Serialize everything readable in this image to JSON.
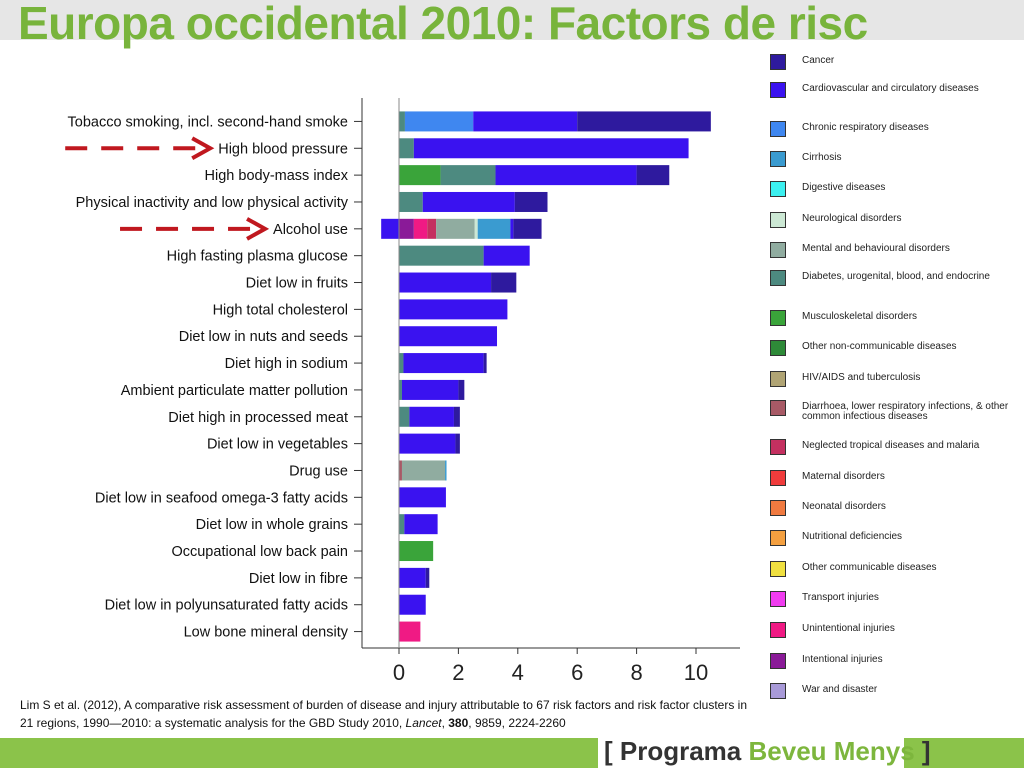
{
  "title": "Europa occidental 2010: Factors de risc",
  "citation": {
    "text_a": "Lim S et al. (2012), A comparative risk assessment of burden of disease and injury attributable to 67 risk factors and risk factor clusters in 21 regions, 1990—2010: a systematic analysis for the GBD Study 2010, ",
    "journal": "Lancet",
    "sep": ", ",
    "volume": "380",
    "text_b": ", 9859, 2224-2260"
  },
  "footer": {
    "open": "[ Programa ",
    "accent": "Beveu Menys",
    "close": " ]"
  },
  "legend": [
    {
      "label": "Cancer",
      "color": "#2e1a9e"
    },
    {
      "label": "Cardiovascular and circulatory diseases",
      "color": "#3a12f0"
    },
    {
      "label": "Chronic respiratory diseases",
      "color": "#3f87f0"
    },
    {
      "label": "Cirrhosis",
      "color": "#3a9bd0"
    },
    {
      "label": "Digestive diseases",
      "color": "#3cf0f0"
    },
    {
      "label": "Neurological disorders",
      "color": "#cce8d4"
    },
    {
      "label": "Mental and behavioural disorders",
      "color": "#90aca0"
    },
    {
      "label": "Diabetes, urogenital, blood, and endocrine",
      "color": "#4d8a80"
    },
    {
      "label": "Musculoskeletal disorders",
      "color": "#3aa43a"
    },
    {
      "label": "Other non-communicable diseases",
      "color": "#2e8a38"
    },
    {
      "label": "HIV/AIDS and tuberculosis",
      "color": "#b0a474"
    },
    {
      "label": "Diarrhoea, lower respiratory infections, & other common infectious diseases",
      "color": "#a85a66"
    },
    {
      "label": "Neglected tropical diseases and malaria",
      "color": "#c43060"
    },
    {
      "label": "Maternal disorders",
      "color": "#f03c3c"
    },
    {
      "label": "Neonatal disorders",
      "color": "#f07a40"
    },
    {
      "label": "Nutritional deficiencies",
      "color": "#f4a040"
    },
    {
      "label": "Other communicable diseases",
      "color": "#f0e040"
    },
    {
      "label": "Transport injuries",
      "color": "#f03cf0"
    },
    {
      "label": "Unintentional injuries",
      "color": "#f01a84"
    },
    {
      "label": "Intentional injuries",
      "color": "#8a1a98"
    },
    {
      "label": "War and disaster",
      "color": "#a89ad8"
    }
  ],
  "chart_data": {
    "type": "bar",
    "orientation": "horizontal",
    "stacked": true,
    "xlim": [
      -0.6,
      11
    ],
    "xticks": [
      0,
      2,
      4,
      6,
      8,
      10
    ],
    "highlighted_categories": [
      "High blood pressure",
      "Alcohol use"
    ],
    "categories": [
      "Tobacco smoking, incl. second-hand smoke",
      "High blood pressure",
      "High body-mass index",
      "Physical inactivity and low physical activity",
      "Alcohol use",
      "High fasting plasma glucose",
      "Diet low in fruits",
      "High total cholesterol",
      "Diet low in nuts and seeds",
      "Diet high in sodium",
      "Ambient particulate matter pollution",
      "Diet high in processed meat",
      "Diet low in vegetables",
      "Drug use",
      "Diet low in seafood omega-3 fatty acids",
      "Diet low in whole grains",
      "Occupational low back pain",
      "Diet low in fibre",
      "Diet low in polyunsaturated fatty acids",
      "Low bone mineral density"
    ],
    "bars": [
      [
        {
          "c": "#4d8a80",
          "v": 0.2
        },
        {
          "c": "#3f87f0",
          "v": 2.3
        },
        {
          "c": "#3a12f0",
          "v": 3.5
        },
        {
          "c": "#2e1a9e",
          "v": 4.5
        }
      ],
      [
        {
          "c": "#4d8a80",
          "v": 0.5
        },
        {
          "c": "#3a12f0",
          "v": 9.25
        }
      ],
      [
        {
          "c": "#3aa43a",
          "v": 1.4
        },
        {
          "c": "#4d8a80",
          "v": 1.85
        },
        {
          "c": "#3a12f0",
          "v": 4.75
        },
        {
          "c": "#2e1a9e",
          "v": 1.1
        }
      ],
      [
        {
          "c": "#4d8a80",
          "v": 0.8
        },
        {
          "c": "#3a12f0",
          "v": 3.1
        },
        {
          "c": "#2e1a9e",
          "v": 1.1
        }
      ],
      [
        {
          "c": "#3a12f0",
          "v": -0.6
        },
        {
          "c": "#8a1a98",
          "v": 0.5
        },
        {
          "c": "#f01a84",
          "v": 0.45
        },
        {
          "c": "#c43060",
          "v": 0.3
        },
        {
          "c": "#90aca0",
          "v": 1.3
        },
        {
          "c": "#cce8d4",
          "v": 0.1
        },
        {
          "c": "#3a9bd0",
          "v": 1.1
        },
        {
          "c": "#3a12f0",
          "v": 0.1
        },
        {
          "c": "#2e1a9e",
          "v": 0.95
        }
      ],
      [
        {
          "c": "#4d8a80",
          "v": 2.85
        },
        {
          "c": "#3a12f0",
          "v": 1.55
        }
      ],
      [
        {
          "c": "#3a12f0",
          "v": 3.1
        },
        {
          "c": "#2e1a9e",
          "v": 0.85
        }
      ],
      [
        {
          "c": "#3a12f0",
          "v": 3.65
        }
      ],
      [
        {
          "c": "#3a12f0",
          "v": 3.3
        }
      ],
      [
        {
          "c": "#4d8a80",
          "v": 0.15
        },
        {
          "c": "#3a12f0",
          "v": 2.7
        },
        {
          "c": "#2e1a9e",
          "v": 0.1
        }
      ],
      [
        {
          "c": "#4d8a80",
          "v": 0.1
        },
        {
          "c": "#3a12f0",
          "v": 1.9
        },
        {
          "c": "#2e1a9e",
          "v": 0.2
        }
      ],
      [
        {
          "c": "#4d8a80",
          "v": 0.35
        },
        {
          "c": "#3a12f0",
          "v": 1.5
        },
        {
          "c": "#2e1a9e",
          "v": 0.2
        }
      ],
      [
        {
          "c": "#3a12f0",
          "v": 1.9
        },
        {
          "c": "#2e1a9e",
          "v": 0.15
        }
      ],
      [
        {
          "c": "#a85a66",
          "v": 0.1
        },
        {
          "c": "#90aca0",
          "v": 1.45
        },
        {
          "c": "#3a9bd0",
          "v": 0.05
        }
      ],
      [
        {
          "c": "#3a12f0",
          "v": 1.58
        }
      ],
      [
        {
          "c": "#4d8a80",
          "v": 0.18
        },
        {
          "c": "#3a12f0",
          "v": 1.12
        }
      ],
      [
        {
          "c": "#3aa43a",
          "v": 1.15
        }
      ],
      [
        {
          "c": "#3a12f0",
          "v": 0.9
        },
        {
          "c": "#2e1a9e",
          "v": 0.12
        }
      ],
      [
        {
          "c": "#3a12f0",
          "v": 0.9
        }
      ],
      [
        {
          "c": "#f01a84",
          "v": 0.72
        }
      ]
    ]
  }
}
